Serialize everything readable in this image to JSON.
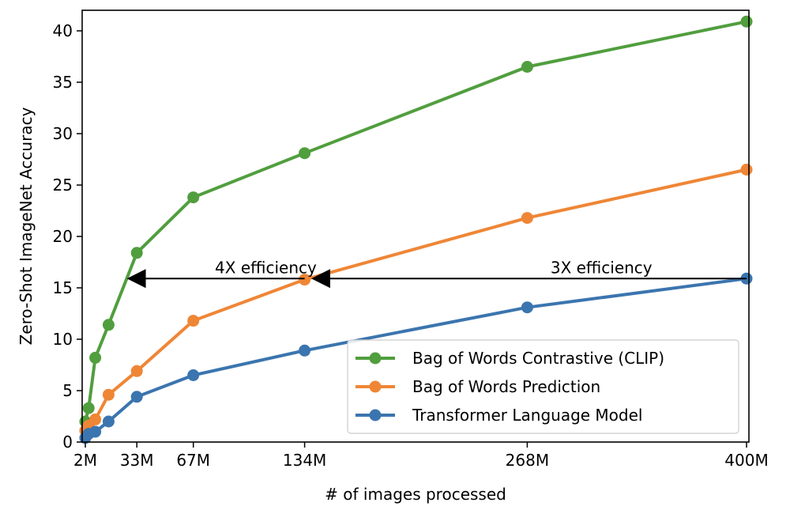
{
  "chart_data": {
    "type": "line",
    "title": "",
    "xlabel": "# of images processed",
    "ylabel": "Zero-Shot ImageNet Accuracy",
    "xlim": [
      0,
      401
    ],
    "ylim": [
      0,
      42
    ],
    "grid": false,
    "legend_position": "lower right",
    "x_ticks": [
      {
        "value": 2,
        "label": "2M"
      },
      {
        "value": 33,
        "label": "33M"
      },
      {
        "value": 67,
        "label": "67M"
      },
      {
        "value": 134,
        "label": "134M"
      },
      {
        "value": 268,
        "label": "268M"
      },
      {
        "value": 400,
        "label": "400M"
      }
    ],
    "y_ticks": [
      0,
      5,
      10,
      15,
      20,
      25,
      30,
      35,
      40
    ],
    "series": [
      {
        "name": "Bag of Words Contrastive (CLIP)",
        "color": "#519e3e",
        "x": [
          2,
          4,
          8,
          16,
          33,
          67,
          134,
          268,
          400
        ],
        "values": [
          2.0,
          3.3,
          8.2,
          11.4,
          18.4,
          23.8,
          28.1,
          36.5,
          40.9
        ]
      },
      {
        "name": "Bag of Words Prediction",
        "color": "#ef8636",
        "x": [
          2,
          4,
          8,
          16,
          33,
          67,
          134,
          268,
          400
        ],
        "values": [
          1.1,
          1.6,
          2.2,
          4.6,
          6.9,
          11.8,
          15.8,
          21.8,
          26.5
        ]
      },
      {
        "name": "Transformer Language Model",
        "color": "#3b75af",
        "x": [
          2,
          4,
          8,
          16,
          33,
          67,
          134,
          268,
          400
        ],
        "values": [
          0.4,
          0.8,
          1.0,
          2.0,
          4.4,
          6.5,
          8.9,
          13.1,
          15.9
        ]
      }
    ],
    "annotations": [
      {
        "text": "4X efficiency",
        "arrow_from_x": 134,
        "arrow_to_x": 27,
        "y": 15.9,
        "text_x": 80
      },
      {
        "text": "3X efficiency",
        "arrow_from_x": 400,
        "arrow_to_x": 138,
        "y": 15.9,
        "text_x": 282
      }
    ]
  }
}
